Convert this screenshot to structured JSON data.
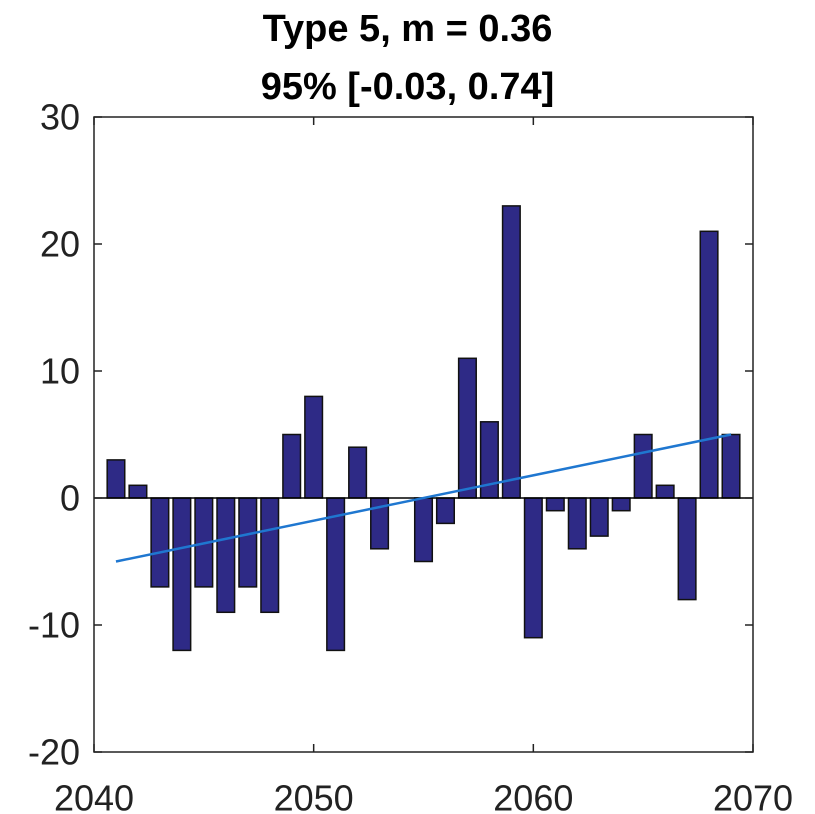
{
  "chart_data": {
    "type": "bar",
    "title_lines": [
      "Type 5, m = 0.36",
      "95% [-0.03, 0.74]"
    ],
    "xlabel": "",
    "ylabel": "",
    "xlim": [
      2040,
      2070
    ],
    "ylim": [
      -20,
      30
    ],
    "xticks": [
      2040,
      2050,
      2060,
      2070
    ],
    "yticks": [
      30,
      20,
      10,
      0,
      -10,
      -20
    ],
    "grid": false,
    "legend": "none",
    "bar_color": "#2e2a86",
    "bar_edge_color": "#111111",
    "trend_color": "#1f77d0",
    "bars": [
      {
        "x": 2041,
        "y": 3
      },
      {
        "x": 2042,
        "y": 1
      },
      {
        "x": 2043,
        "y": -7
      },
      {
        "x": 2044,
        "y": -12
      },
      {
        "x": 2045,
        "y": -7
      },
      {
        "x": 2046,
        "y": -9
      },
      {
        "x": 2047,
        "y": -7
      },
      {
        "x": 2048,
        "y": -9
      },
      {
        "x": 2049,
        "y": 5
      },
      {
        "x": 2050,
        "y": 8
      },
      {
        "x": 2051,
        "y": -12
      },
      {
        "x": 2052,
        "y": 4
      },
      {
        "x": 2053,
        "y": -4
      },
      {
        "x": 2054,
        "y": 0
      },
      {
        "x": 2055,
        "y": -5
      },
      {
        "x": 2056,
        "y": -2
      },
      {
        "x": 2057,
        "y": 11
      },
      {
        "x": 2058,
        "y": 6
      },
      {
        "x": 2059,
        "y": 23
      },
      {
        "x": 2060,
        "y": -11
      },
      {
        "x": 2061,
        "y": -1
      },
      {
        "x": 2062,
        "y": -4
      },
      {
        "x": 2063,
        "y": -3
      },
      {
        "x": 2064,
        "y": -1
      },
      {
        "x": 2065,
        "y": 5
      },
      {
        "x": 2066,
        "y": 1
      },
      {
        "x": 2067,
        "y": -8
      },
      {
        "x": 2068,
        "y": 21
      },
      {
        "x": 2069,
        "y": 5
      }
    ],
    "trend_line": {
      "x": [
        2041,
        2069
      ],
      "y": [
        -5.0,
        5.0
      ]
    }
  }
}
